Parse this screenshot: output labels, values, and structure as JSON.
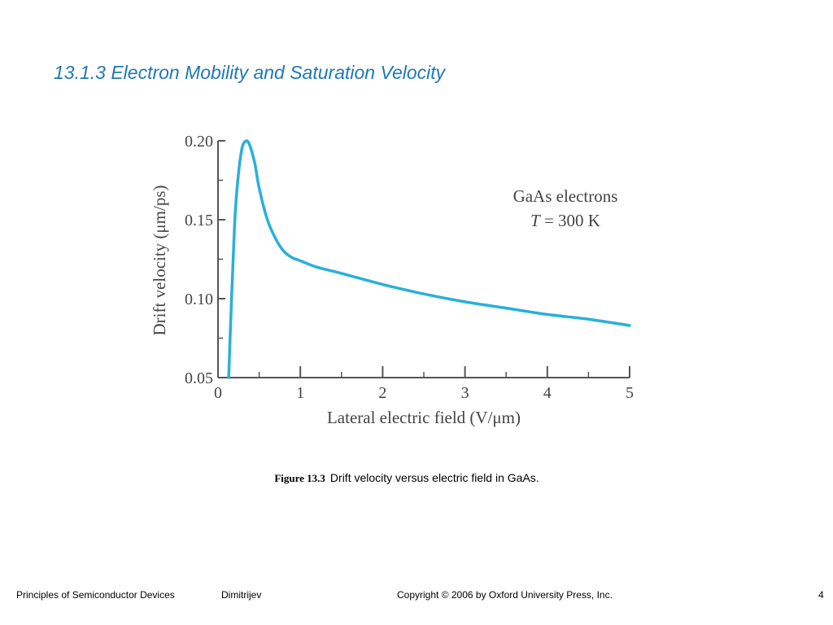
{
  "slide": {
    "title": "13.1.3 Electron Mobility and Saturation Velocity"
  },
  "figure": {
    "label": "Figure 13.3",
    "caption": "Drift velocity versus electric field in GaAs."
  },
  "footer": {
    "course": "Principles of Semiconductor Devices",
    "author": "Dimitrijev",
    "copyright": "Copyright © 2006 by Oxford University Press, Inc.",
    "page": "4"
  },
  "colors": {
    "title": "#1f78b4",
    "curve": "#29b0d8",
    "axis": "#555555"
  },
  "chart_data": {
    "type": "line",
    "title": "",
    "xlabel": "Lateral electric field (V/μm)",
    "ylabel": "Drift velocity (μm/ps)",
    "xlim": [
      0,
      5
    ],
    "ylim": [
      0.05,
      0.2
    ],
    "xticks": [
      "0",
      "1",
      "2",
      "3",
      "4",
      "5"
    ],
    "yticks": [
      "0.05",
      "0.10",
      "0.15",
      "0.20"
    ],
    "annotation": {
      "line1": "GaAs electrons",
      "line2_var": "T",
      "line2_rest": " = 300 K"
    },
    "grid": false,
    "series": [
      {
        "x": [
          0.13,
          0.15,
          0.18,
          0.21,
          0.25,
          0.29,
          0.32,
          0.35,
          0.37,
          0.4,
          0.45,
          0.5,
          0.6,
          0.7,
          0.8,
          0.9,
          1.0,
          1.2,
          1.5,
          2.0,
          2.5,
          3.0,
          3.5,
          4.0,
          4.5,
          5.0
        ],
        "y": [
          0.05,
          0.08,
          0.12,
          0.155,
          0.18,
          0.195,
          0.199,
          0.2,
          0.199,
          0.195,
          0.185,
          0.17,
          0.15,
          0.138,
          0.13,
          0.126,
          0.124,
          0.12,
          0.116,
          0.109,
          0.103,
          0.098,
          0.094,
          0.09,
          0.087,
          0.083
        ]
      }
    ]
  }
}
